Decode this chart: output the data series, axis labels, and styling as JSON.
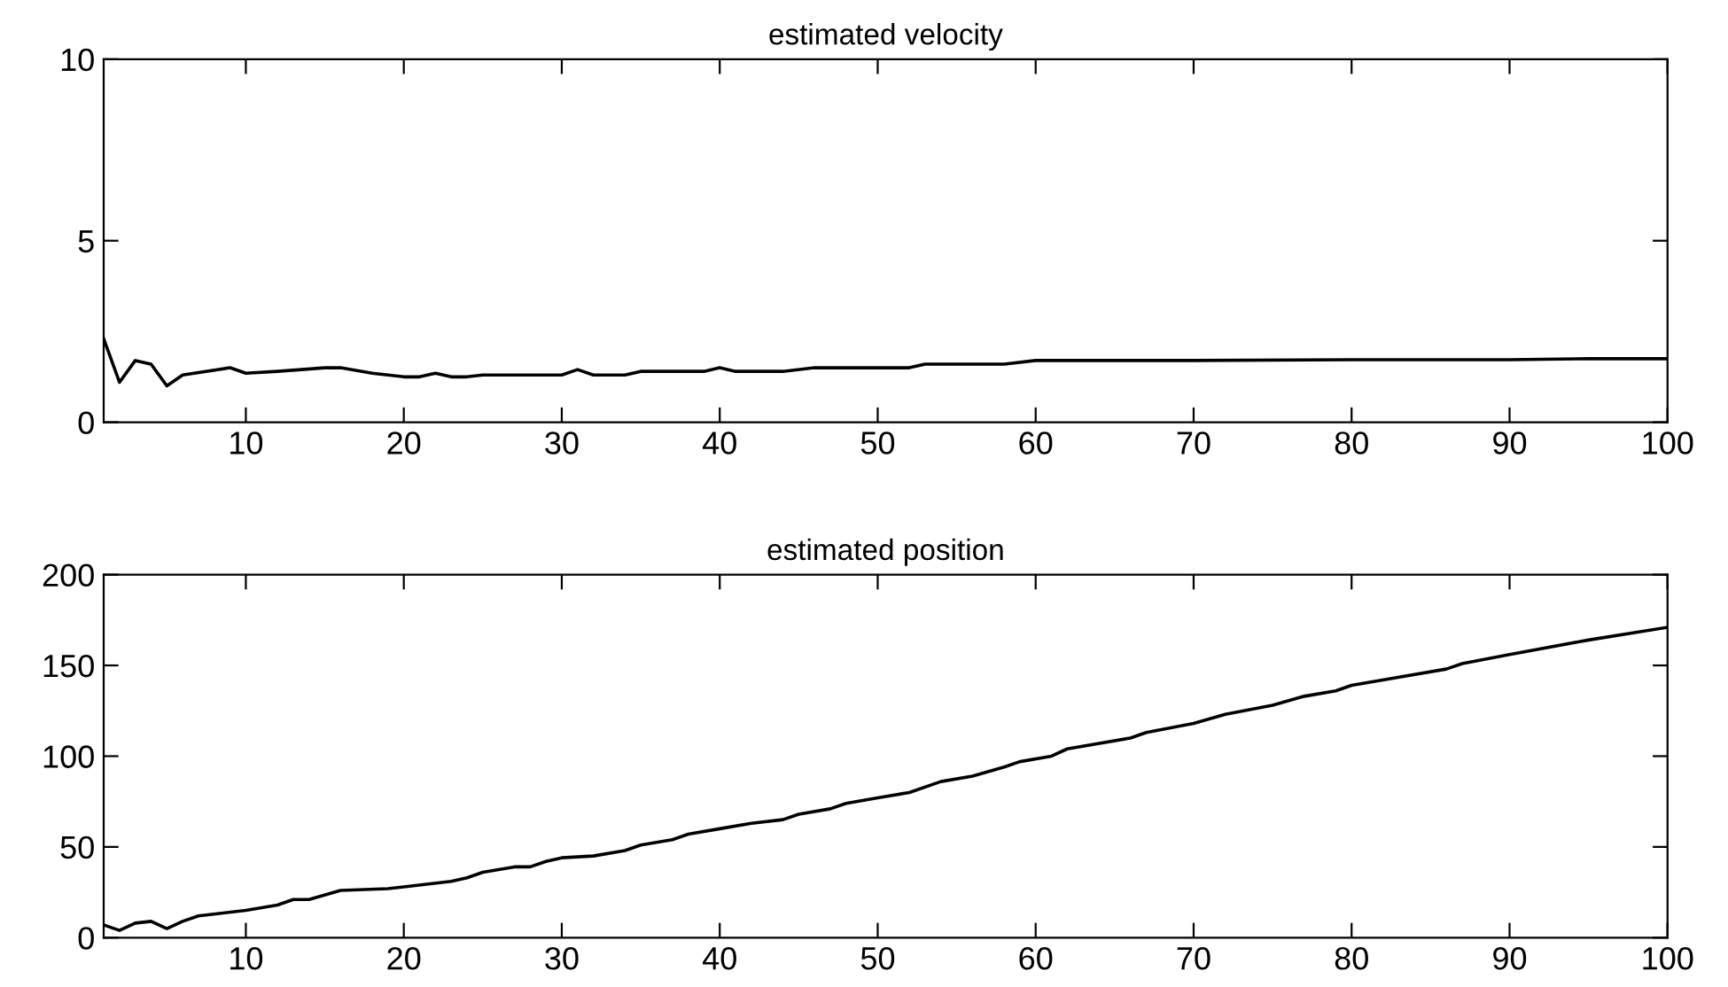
{
  "chart_data": [
    {
      "type": "line",
      "title": "estimated velocity",
      "x": [
        1,
        2,
        3,
        4,
        5,
        6,
        9,
        10,
        12,
        15,
        16,
        18,
        20,
        21,
        22,
        23,
        24,
        25,
        30,
        31,
        32,
        34,
        35,
        39,
        40,
        41,
        44,
        46,
        48,
        52,
        53,
        58,
        60,
        70,
        80,
        90,
        95,
        100
      ],
      "series": [
        {
          "color": "#000000",
          "values": [
            2.3,
            1.1,
            1.7,
            1.6,
            1.0,
            1.3,
            1.5,
            1.35,
            1.4,
            1.5,
            1.5,
            1.35,
            1.25,
            1.25,
            1.35,
            1.25,
            1.25,
            1.3,
            1.3,
            1.45,
            1.3,
            1.3,
            1.4,
            1.4,
            1.5,
            1.4,
            1.4,
            1.5,
            1.5,
            1.5,
            1.6,
            1.6,
            1.7,
            1.7,
            1.72,
            1.72,
            1.75,
            1.75
          ]
        }
      ],
      "xlim": [
        1,
        100
      ],
      "xticks": [
        10,
        20,
        30,
        40,
        50,
        60,
        70,
        80,
        90,
        100
      ],
      "ylim": [
        0,
        10
      ],
      "yticks": [
        0,
        5,
        10
      ],
      "grid": false,
      "legend": false
    },
    {
      "type": "line",
      "title": "estimated position",
      "x": [
        1,
        2,
        3,
        4,
        5,
        6,
        7,
        10,
        12,
        13,
        14,
        16,
        19,
        20,
        23,
        24,
        25,
        27,
        28,
        29,
        30,
        32,
        34,
        35,
        37,
        38,
        40,
        42,
        44,
        45,
        47,
        48,
        50,
        52,
        54,
        56,
        58,
        59,
        61,
        62,
        66,
        67,
        70,
        72,
        75,
        77,
        79,
        80,
        86,
        87,
        90,
        95,
        100
      ],
      "series": [
        {
          "color": "#000000",
          "values": [
            7,
            4,
            8,
            9,
            5,
            9,
            12,
            15,
            18,
            21,
            21,
            26,
            27,
            28,
            31,
            33,
            36,
            39,
            39,
            42,
            44,
            45,
            48,
            51,
            54,
            57,
            60,
            63,
            65,
            68,
            71,
            74,
            77,
            80,
            86,
            89,
            94,
            97,
            100,
            104,
            110,
            113,
            118,
            123,
            128,
            133,
            136,
            139,
            148,
            151,
            156,
            164,
            171
          ]
        }
      ],
      "xlim": [
        1,
        100
      ],
      "xticks": [
        10,
        20,
        30,
        40,
        50,
        60,
        70,
        80,
        90,
        100
      ],
      "ylim": [
        0,
        200
      ],
      "yticks": [
        0,
        50,
        100,
        150,
        200
      ],
      "grid": false,
      "legend": false
    }
  ]
}
